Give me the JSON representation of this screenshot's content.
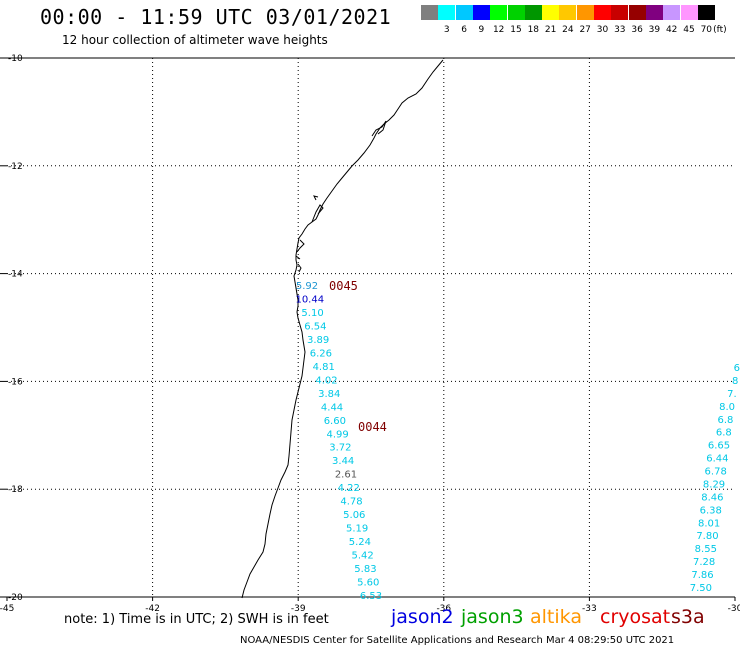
{
  "title": "00:00 - 11:59 UTC 03/01/2021",
  "subtitle": "12 hour collection of altimeter wave heights",
  "legend": {
    "unit": "(ft)",
    "entries": [
      {
        "label": "",
        "color": "#7f7f7f"
      },
      {
        "label": "3",
        "color": "#00ffff"
      },
      {
        "label": "6",
        "color": "#00c8ff"
      },
      {
        "label": "9",
        "color": "#0000ff"
      },
      {
        "label": "12",
        "color": "#00ff00"
      },
      {
        "label": "15",
        "color": "#00d200"
      },
      {
        "label": "18",
        "color": "#009600"
      },
      {
        "label": "21",
        "color": "#ffff00"
      },
      {
        "label": "24",
        "color": "#ffc800"
      },
      {
        "label": "27",
        "color": "#ff9600"
      },
      {
        "label": "30",
        "color": "#ff0000"
      },
      {
        "label": "33",
        "color": "#c80000"
      },
      {
        "label": "36",
        "color": "#960000"
      },
      {
        "label": "39",
        "color": "#800080"
      },
      {
        "label": "42",
        "color": "#c896ff"
      },
      {
        "label": "45",
        "color": "#ff96ff"
      },
      {
        "label": "70",
        "color": "#000000"
      }
    ]
  },
  "map": {
    "lon_range": [
      -45,
      -30
    ],
    "lat_range": [
      -20,
      -10
    ],
    "lon_ticks": [
      "-45",
      "-42",
      "-39",
      "-36",
      "-33",
      "-30"
    ],
    "lat_ticks": [
      "-10",
      "-12",
      "-14",
      "-16",
      "-18",
      "-20"
    ],
    "gridlines": "dotted"
  },
  "passes": [
    {
      "id": "0045",
      "color": "#800000"
    },
    {
      "id": "0044",
      "color": "#800000"
    }
  ],
  "readings": {
    "track_west": [
      {
        "value": "5.92",
        "color": "#1e96d2"
      },
      {
        "value": "10.44",
        "color": "#0000c8"
      },
      {
        "value": "5.10",
        "color": "#00c8e6"
      },
      {
        "value": "6.54",
        "color": "#00c8e6"
      },
      {
        "value": "3.89",
        "color": "#00c8e6"
      },
      {
        "value": "6.26",
        "color": "#00c8e6"
      },
      {
        "value": "4.81",
        "color": "#00c8e6"
      },
      {
        "value": "4.02",
        "color": "#00c8e6"
      },
      {
        "value": "3.84",
        "color": "#00c8e6"
      },
      {
        "value": "4.44",
        "color": "#00c8e6"
      },
      {
        "value": "6.60",
        "color": "#00c8e6"
      },
      {
        "value": "4.99",
        "color": "#00c8e6"
      },
      {
        "value": "3.72",
        "color": "#00c8e6"
      },
      {
        "value": "3.44",
        "color": "#00c8e6"
      },
      {
        "value": "2.61",
        "color": "#555555"
      },
      {
        "value": "4.22",
        "color": "#00c8e6"
      },
      {
        "value": "4.78",
        "color": "#00c8e6"
      },
      {
        "value": "5.06",
        "color": "#00c8e6"
      },
      {
        "value": "5.19",
        "color": "#00c8e6"
      },
      {
        "value": "5.24",
        "color": "#00c8e6"
      },
      {
        "value": "5.42",
        "color": "#00c8e6"
      },
      {
        "value": "5.83",
        "color": "#00c8e6"
      },
      {
        "value": "5.60",
        "color": "#00c8e6"
      },
      {
        "value": "6.53",
        "color": "#00c8e6"
      }
    ],
    "track_east": [
      {
        "value": "6",
        "color": "#00c8e6"
      },
      {
        "value": "8",
        "color": "#00c8e6"
      },
      {
        "value": "7.",
        "color": "#00c8e6"
      },
      {
        "value": "8.0",
        "color": "#00c8e6"
      },
      {
        "value": "6.8",
        "color": "#00c8e6"
      },
      {
        "value": "6.8",
        "color": "#00c8e6"
      },
      {
        "value": "6.65",
        "color": "#00c8e6"
      },
      {
        "value": "6.44",
        "color": "#00c8e6"
      },
      {
        "value": "6.78",
        "color": "#00c8e6"
      },
      {
        "value": "8.29",
        "color": "#00c8e6"
      },
      {
        "value": "8.46",
        "color": "#00c8e6"
      },
      {
        "value": "6.38",
        "color": "#00c8e6"
      },
      {
        "value": "8.01",
        "color": "#00c8e6"
      },
      {
        "value": "7.80",
        "color": "#00c8e6"
      },
      {
        "value": "8.55",
        "color": "#00c8e6"
      },
      {
        "value": "7.28",
        "color": "#00c8e6"
      },
      {
        "value": "7.86",
        "color": "#00c8e6"
      },
      {
        "value": "7.50",
        "color": "#00c8e6"
      }
    ]
  },
  "note": "note: 1) Time is in UTC; 2) SWH is in feet",
  "satellites": [
    {
      "name": "jason2",
      "color": "#0000e0"
    },
    {
      "name": "jason3",
      "color": "#00a000"
    },
    {
      "name": "altika",
      "color": "#ff9600"
    },
    {
      "name": "cryosat",
      "color": "#e00000"
    },
    {
      "name": "s3a",
      "color": "#800000"
    }
  ],
  "footer": "NOAA/NESDIS Center for Satellite Applications and Research    Mar  4 08:29:50 UTC 2021"
}
